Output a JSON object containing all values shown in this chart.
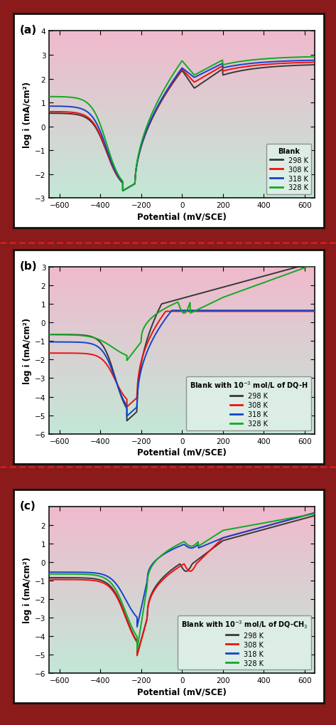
{
  "figure_bg": "#8B1A1A",
  "panel_outer_bg": "#ffffff",
  "plot_bg_top": "#f0b8cc",
  "plot_bg_bottom": "#c0e8d0",
  "dashed_separator_color": "#cc2222",
  "colors": {
    "298K": "#383838",
    "308K": "#ee1111",
    "318K": "#1144cc",
    "328K": "#11aa22"
  },
  "line_width": 1.4,
  "panels": [
    {
      "label": "(a)",
      "legend_title": "Blank",
      "ylim": [
        -3,
        4
      ],
      "yticks": [
        -3,
        -2,
        -1,
        0,
        1,
        2,
        3,
        4
      ],
      "xlim": [
        -650,
        650
      ],
      "xticks": [
        -600,
        -400,
        -200,
        0,
        200,
        400,
        600
      ]
    },
    {
      "label": "(b)",
      "legend_title": "Blank with 10$^{-3}$ mol/L of DQ-H",
      "ylim": [
        -6,
        3
      ],
      "yticks": [
        -6,
        -5,
        -4,
        -3,
        -2,
        -1,
        0,
        1,
        2,
        3
      ],
      "xlim": [
        -650,
        650
      ],
      "xticks": [
        -600,
        -400,
        -200,
        0,
        200,
        400,
        600
      ]
    },
    {
      "label": "(c)",
      "legend_title": "Blank with 10$^{-3}$ mol/L of DQ-CH$_3$",
      "ylim": [
        -6,
        3
      ],
      "yticks": [
        -6,
        -5,
        -4,
        -3,
        -2,
        -1,
        0,
        1,
        2
      ],
      "xlim": [
        -650,
        650
      ],
      "xticks": [
        -600,
        -400,
        -200,
        0,
        200,
        400,
        600
      ]
    }
  ]
}
